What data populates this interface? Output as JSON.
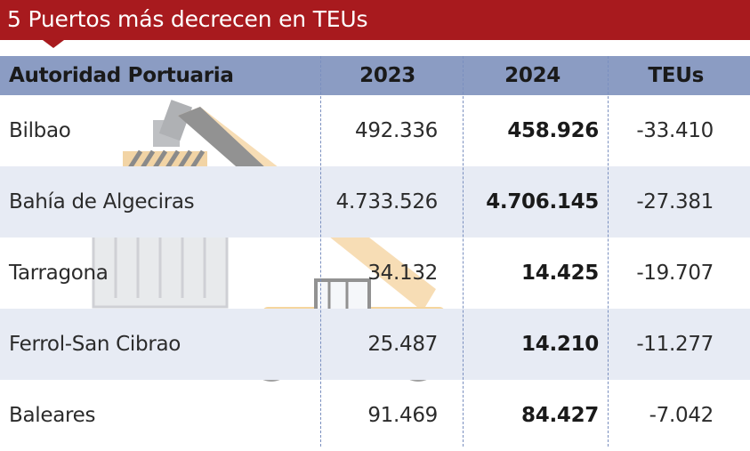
{
  "title": "5 Puertos más decrecen en TEUs",
  "colors": {
    "title_bg": "#a81a1e",
    "header_bg": "#8b9cc3",
    "shaded_row_bg": "#e7ebf4",
    "divider": "#7a8fbf"
  },
  "table": {
    "headers": {
      "port": "Autoridad Portuaria",
      "y2023": "2023",
      "y2024": "2024",
      "teus": "TEUs"
    },
    "rows": [
      {
        "port": "Bilbao",
        "y2023": "492.336",
        "y2024": "458.926",
        "teus": "-33.410"
      },
      {
        "port": "Bahía de Algeciras",
        "y2023": "4.733.526",
        "y2024": "4.706.145",
        "teus": "-27.381"
      },
      {
        "port": "Tarragona",
        "y2023": "34.132",
        "y2024": "14.425",
        "teus": "-19.707"
      },
      {
        "port": "Ferrol-San Cibrao",
        "y2023": "25.487",
        "y2024": "14.210",
        "teus": "-11.277"
      },
      {
        "port": "Baleares",
        "y2023": "91.469",
        "y2024": "84.427",
        "teus": "-7.042"
      }
    ]
  },
  "illustration": {
    "icon": "reach-stacker-container-icon"
  }
}
